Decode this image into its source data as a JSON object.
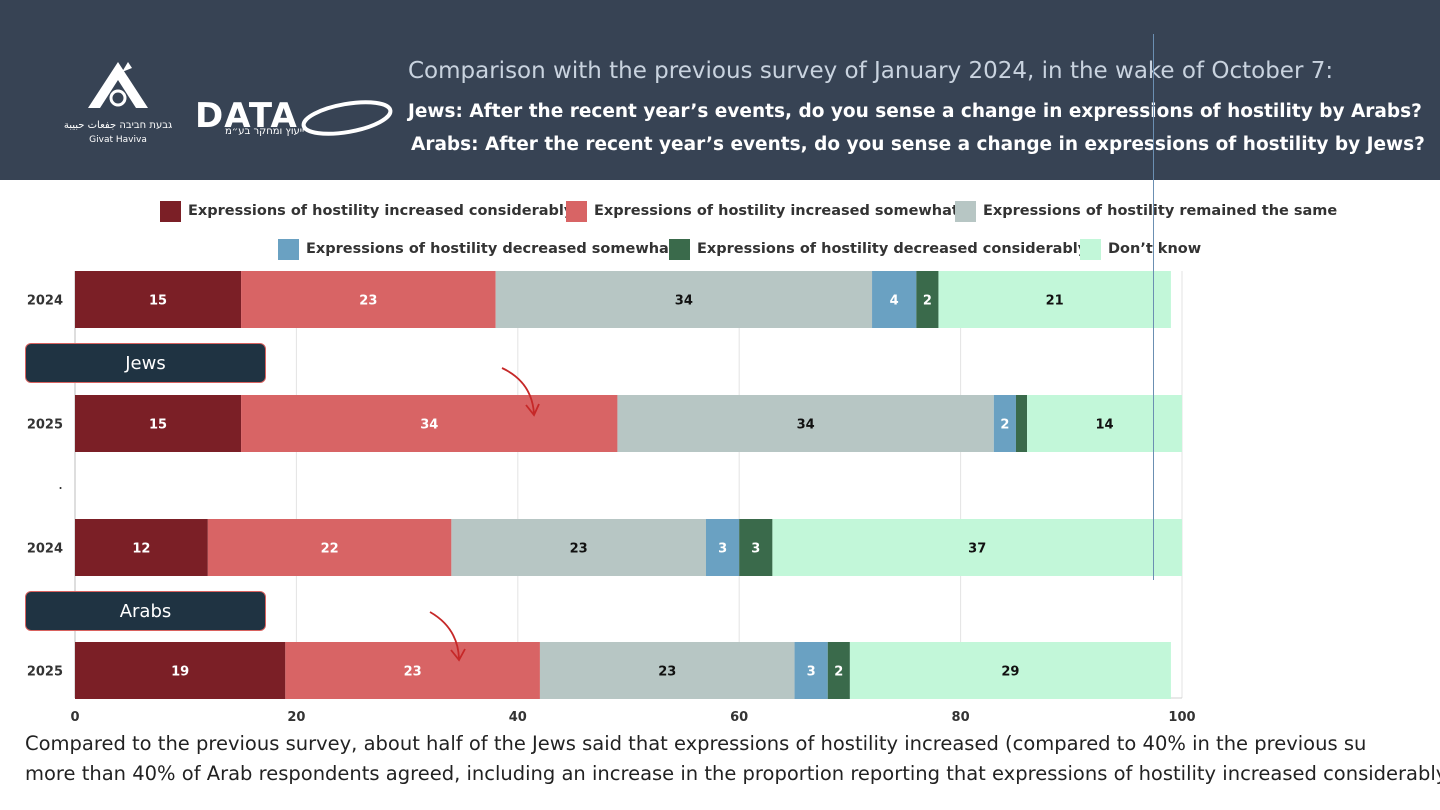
{
  "header": {
    "title_line1": "Comparison with the previous survey of January 2024, in the wake of October 7:",
    "title_line2": "Jews: After the recent year’s events, do you sense a change in expressions of hostility by Arabs?",
    "title_line3": "Arabs: After the recent year’s events, do you sense a change in expressions of hostility by Jews?",
    "logo_gh_line1": "גבעת חביבה  جفعات حبيبة",
    "logo_gh_line2": "Givat Haviva",
    "logo_data_word": "DATA",
    "logo_data_sub": "ייעוץ ומחקר בע״מ"
  },
  "groups": [
    "Jews",
    "Arabs"
  ],
  "separator_dot": ".",
  "footnote": {
    "line1": "Compared to the previous survey, about half of the Jews said that expressions of hostility increased (compared to 40% in the previous su",
    "line2": "more than 40% of Arab respondents agreed, including an increase in the proportion reporting that expressions of hostility increased considerably."
  },
  "colors": {
    "header_bg": "#374354",
    "arrow": "#c62828",
    "group_label_bg": "#1f3342",
    "group_label_border": "#d9625f"
  },
  "chart_data": {
    "type": "bar",
    "orientation": "horizontal",
    "stacked": true,
    "categories": [
      "2024",
      "2025",
      "2024",
      "2025"
    ],
    "xlim": [
      0,
      100
    ],
    "xticks": [
      0,
      20,
      40,
      60,
      80,
      100
    ],
    "grid": true,
    "legend_position": "top",
    "series": [
      {
        "name": "Expressions of hostility increased considerably",
        "color": "#7b1f26",
        "text_color": "#ffffff",
        "values": [
          15,
          15,
          12,
          19
        ]
      },
      {
        "name": "Expressions of hostility increased somewhat",
        "color": "#d86465",
        "text_color": "#ffffff",
        "values": [
          23,
          34,
          22,
          23
        ]
      },
      {
        "name": "Expressions of hostility remained the same",
        "color": "#b7c6c4",
        "text_color": "#111111",
        "values": [
          34,
          34,
          23,
          23
        ]
      },
      {
        "name": "Expressions of hostility decreased somewhat",
        "color": "#6aa1c2",
        "text_color": "#ffffff",
        "values": [
          4,
          2,
          3,
          3
        ]
      },
      {
        "name": "Expressions of hostility decreased considerably",
        "color": "#3a6a4b",
        "text_color": "#ffffff",
        "values": [
          2,
          1,
          3,
          2
        ]
      },
      {
        "name": "Don’t know",
        "color": "#c2f7d9",
        "text_color": "#111111",
        "values": [
          21,
          14,
          37,
          29
        ]
      }
    ],
    "data_labels": [
      [
        "15",
        "23",
        "34",
        "4",
        "2",
        "21"
      ],
      [
        "15",
        "34",
        "34",
        "2",
        "",
        "14"
      ],
      [
        "12",
        "22",
        "23",
        "3",
        "3",
        "37"
      ],
      [
        "19",
        "23",
        "23",
        "3",
        "2",
        "29"
      ]
    ]
  }
}
